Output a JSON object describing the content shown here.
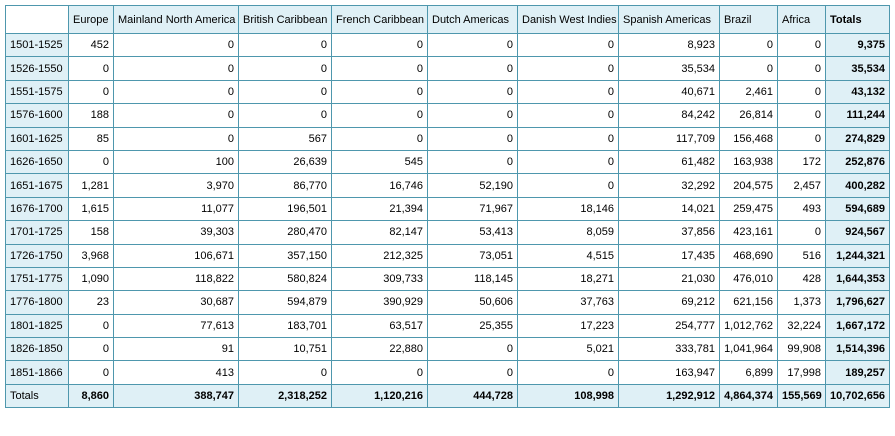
{
  "table": {
    "columns": [
      "Europe",
      "Mainland North America",
      "British Caribbean",
      "French Caribbean",
      "Dutch Americas",
      "Danish West Indies",
      "Spanish Americas",
      "Brazil",
      "Africa",
      "Totals"
    ],
    "rows": [
      {
        "label": "1501-1525",
        "cells": [
          "452",
          "0",
          "0",
          "0",
          "0",
          "0",
          "8,923",
          "0",
          "0",
          "9,375"
        ]
      },
      {
        "label": "1526-1550",
        "cells": [
          "0",
          "0",
          "0",
          "0",
          "0",
          "0",
          "35,534",
          "0",
          "0",
          "35,534"
        ]
      },
      {
        "label": "1551-1575",
        "cells": [
          "0",
          "0",
          "0",
          "0",
          "0",
          "0",
          "40,671",
          "2,461",
          "0",
          "43,132"
        ]
      },
      {
        "label": "1576-1600",
        "cells": [
          "188",
          "0",
          "0",
          "0",
          "0",
          "0",
          "84,242",
          "26,814",
          "0",
          "111,244"
        ]
      },
      {
        "label": "1601-1625",
        "cells": [
          "85",
          "0",
          "567",
          "0",
          "0",
          "0",
          "117,709",
          "156,468",
          "0",
          "274,829"
        ]
      },
      {
        "label": "1626-1650",
        "cells": [
          "0",
          "100",
          "26,639",
          "545",
          "0",
          "0",
          "61,482",
          "163,938",
          "172",
          "252,876"
        ]
      },
      {
        "label": "1651-1675",
        "cells": [
          "1,281",
          "3,970",
          "86,770",
          "16,746",
          "52,190",
          "0",
          "32,292",
          "204,575",
          "2,457",
          "400,282"
        ]
      },
      {
        "label": "1676-1700",
        "cells": [
          "1,615",
          "11,077",
          "196,501",
          "21,394",
          "71,967",
          "18,146",
          "14,021",
          "259,475",
          "493",
          "594,689"
        ]
      },
      {
        "label": "1701-1725",
        "cells": [
          "158",
          "39,303",
          "280,470",
          "82,147",
          "53,413",
          "8,059",
          "37,856",
          "423,161",
          "0",
          "924,567"
        ]
      },
      {
        "label": "1726-1750",
        "cells": [
          "3,968",
          "106,671",
          "357,150",
          "212,325",
          "73,051",
          "4,515",
          "17,435",
          "468,690",
          "516",
          "1,244,321"
        ]
      },
      {
        "label": "1751-1775",
        "cells": [
          "1,090",
          "118,822",
          "580,824",
          "309,733",
          "118,145",
          "18,271",
          "21,030",
          "476,010",
          "428",
          "1,644,353"
        ]
      },
      {
        "label": "1776-1800",
        "cells": [
          "23",
          "30,687",
          "594,879",
          "390,929",
          "50,606",
          "37,763",
          "69,212",
          "621,156",
          "1,373",
          "1,796,627"
        ]
      },
      {
        "label": "1801-1825",
        "cells": [
          "0",
          "77,613",
          "183,701",
          "63,517",
          "25,355",
          "17,223",
          "254,777",
          "1,012,762",
          "32,224",
          "1,667,172"
        ]
      },
      {
        "label": "1826-1850",
        "cells": [
          "0",
          "91",
          "10,751",
          "22,880",
          "0",
          "5,021",
          "333,781",
          "1,041,964",
          "99,908",
          "1,514,396"
        ]
      },
      {
        "label": "1851-1866",
        "cells": [
          "0",
          "413",
          "0",
          "0",
          "0",
          "0",
          "163,947",
          "6,899",
          "17,998",
          "189,257"
        ]
      },
      {
        "label": "Totals",
        "cells": [
          "8,860",
          "388,747",
          "2,318,252",
          "1,120,216",
          "444,728",
          "108,998",
          "1,292,912",
          "4,864,374",
          "155,569",
          "10,702,656"
        ]
      }
    ]
  }
}
